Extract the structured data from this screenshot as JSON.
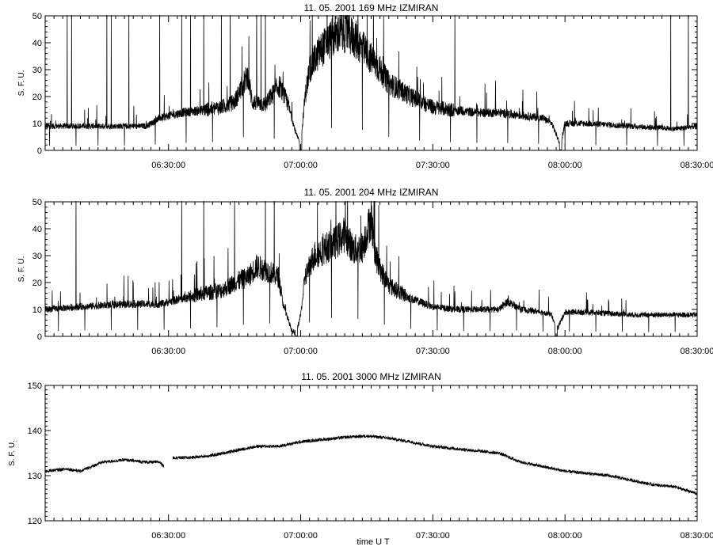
{
  "figure": {
    "xlabel": "time  U T"
  },
  "chart_data": [
    {
      "type": "line",
      "title": "11.  05.  2001    169 MHz    IZMIRAN",
      "ylabel": "S. F. U.",
      "xlim": [
        "06:02:00",
        "08:30:00"
      ],
      "ylim": [
        0,
        50
      ],
      "yticks": [
        0,
        10,
        20,
        30,
        40,
        50
      ],
      "xticks": [
        "06:30:00",
        "07:00:00",
        "07:30:00",
        "08:00:00",
        "08:30:00"
      ],
      "series": [
        {
          "baseline": [
            [
              "06:02",
              9
            ],
            [
              "06:10",
              9
            ],
            [
              "06:20",
              9
            ],
            [
              "06:25",
              9
            ],
            [
              "06:28",
              12
            ],
            [
              "06:33",
              14
            ],
            [
              "06:38",
              15
            ],
            [
              "06:42",
              16
            ],
            [
              "06:45",
              18
            ],
            [
              "06:48",
              28
            ],
            [
              "06:49",
              18
            ],
            [
              "06:52",
              17
            ],
            [
              "06:55",
              24
            ],
            [
              "06:57",
              18
            ],
            [
              "06:59",
              6
            ],
            [
              "07:00",
              2
            ],
            [
              "07:01",
              20
            ],
            [
              "07:02",
              30
            ],
            [
              "07:04",
              36
            ],
            [
              "07:06",
              40
            ],
            [
              "07:08",
              43
            ],
            [
              "07:10",
              44
            ],
            [
              "07:12",
              42
            ],
            [
              "07:14",
              38
            ],
            [
              "07:16",
              34
            ],
            [
              "07:18",
              30
            ],
            [
              "07:20",
              25
            ],
            [
              "07:25",
              20
            ],
            [
              "07:30",
              16
            ],
            [
              "07:35",
              15
            ],
            [
              "07:40",
              14
            ],
            [
              "07:45",
              14
            ],
            [
              "07:50",
              13
            ],
            [
              "07:55",
              12
            ],
            [
              "07:57",
              10
            ],
            [
              "07:59",
              2
            ],
            [
              "08:00",
              10
            ],
            [
              "08:05",
              10
            ],
            [
              "08:15",
              9
            ],
            [
              "08:25",
              8
            ],
            [
              "08:30",
              9
            ]
          ],
          "spikes_to_top": [
            "06:07",
            "06:08",
            "06:09",
            "06:14",
            "06:16",
            "06:17",
            "06:21",
            "06:28",
            "06:33",
            "06:35",
            "06:38",
            "06:42",
            "06:44",
            "06:50",
            "06:51",
            "06:52",
            "07:06",
            "07:13",
            "07:35",
            "08:24",
            "08:28"
          ],
          "dips": [
            "06:03",
            "06:09",
            "06:14",
            "06:20",
            "06:27",
            "06:34",
            "06:40",
            "06:47",
            "06:54",
            "07:00",
            "07:07",
            "07:14",
            "07:20",
            "07:27",
            "07:34",
            "07:40",
            "07:47",
            "07:54",
            "08:00",
            "08:07",
            "08:14",
            "08:21",
            "08:27"
          ],
          "min_dips": [
            "07:00",
            "07:59"
          ]
        }
      ]
    },
    {
      "type": "line",
      "title": "11.  05.  2001    204 MHz    IZMIRAN",
      "ylabel": "S. F. U.",
      "xlim": [
        "06:02:00",
        "08:30:00"
      ],
      "ylim": [
        0,
        50
      ],
      "yticks": [
        0,
        10,
        20,
        30,
        40,
        50
      ],
      "xticks": [
        "06:30:00",
        "07:00:00",
        "07:30:00",
        "08:00:00",
        "08:30:00"
      ],
      "series": [
        {
          "baseline": [
            [
              "06:02",
              10
            ],
            [
              "06:10",
              11
            ],
            [
              "06:20",
              12
            ],
            [
              "06:28",
              12
            ],
            [
              "06:33",
              14
            ],
            [
              "06:38",
              16
            ],
            [
              "06:42",
              17
            ],
            [
              "06:45",
              20
            ],
            [
              "06:48",
              22
            ],
            [
              "06:50",
              26
            ],
            [
              "06:53",
              24
            ],
            [
              "06:55",
              22
            ],
            [
              "06:56",
              12
            ],
            [
              "06:58",
              2
            ],
            [
              "06:59",
              1
            ],
            [
              "07:00",
              8
            ],
            [
              "07:01",
              22
            ],
            [
              "07:03",
              30
            ],
            [
              "07:05",
              32
            ],
            [
              "07:08",
              35
            ],
            [
              "07:10",
              38
            ],
            [
              "07:12",
              32
            ],
            [
              "07:14",
              33
            ],
            [
              "07:16",
              44
            ],
            [
              "07:17",
              30
            ],
            [
              "07:18",
              25
            ],
            [
              "07:20",
              19
            ],
            [
              "07:25",
              14
            ],
            [
              "07:30",
              11
            ],
            [
              "07:35",
              10
            ],
            [
              "07:40",
              10
            ],
            [
              "07:45",
              10
            ],
            [
              "07:47",
              13
            ],
            [
              "07:50",
              10
            ],
            [
              "07:55",
              9
            ],
            [
              "07:57",
              8
            ],
            [
              "07:58",
              2
            ],
            [
              "08:00",
              9
            ],
            [
              "08:05",
              9
            ],
            [
              "08:15",
              8
            ],
            [
              "08:25",
              8
            ],
            [
              "08:30",
              8
            ]
          ],
          "spikes_to_top": [
            "06:09",
            "06:33",
            "06:35",
            "06:38",
            "06:41",
            "06:45",
            "06:47",
            "06:52",
            "06:53",
            "06:54",
            "07:08",
            "07:16"
          ],
          "dips": [
            "06:05",
            "06:11",
            "06:17",
            "06:23",
            "06:29",
            "06:35",
            "06:41",
            "06:47",
            "06:53",
            "06:59",
            "07:02",
            "07:07",
            "07:13",
            "07:19",
            "07:25",
            "07:31",
            "07:37",
            "07:43",
            "07:49",
            "07:55",
            "08:01",
            "08:07",
            "08:13",
            "08:19",
            "08:25"
          ],
          "min_dips": [
            "06:59",
            "07:58"
          ]
        }
      ]
    },
    {
      "type": "line",
      "title": "11.  05.  2001    3000 MHz    IZMIRAN",
      "ylabel": "S. F. U.",
      "xlim": [
        "06:02:00",
        "08:30:00"
      ],
      "ylim": [
        120,
        150
      ],
      "yticks": [
        120,
        130,
        140,
        150
      ],
      "xticks": [
        "06:30:00",
        "07:00:00",
        "07:30:00",
        "08:00:00",
        "08:30:00"
      ],
      "series": [
        {
          "baseline": [
            [
              "06:02",
              131
            ],
            [
              "06:07",
              131.5
            ],
            [
              "06:10",
              131
            ],
            [
              "06:15",
              133
            ],
            [
              "06:20",
              133.5
            ],
            [
              "06:25",
              133
            ],
            [
              "06:28",
              133
            ],
            [
              "06:29",
              132
            ],
            [
              "06:30",
              null
            ],
            [
              "06:31",
              134
            ],
            [
              "06:35",
              134
            ],
            [
              "06:40",
              134.5
            ],
            [
              "06:45",
              135.5
            ],
            [
              "06:50",
              136.5
            ],
            [
              "06:55",
              136.5
            ],
            [
              "07:00",
              137.5
            ],
            [
              "07:05",
              138
            ],
            [
              "07:10",
              138.5
            ],
            [
              "07:15",
              138.8
            ],
            [
              "07:20",
              138.3
            ],
            [
              "07:25",
              137.5
            ],
            [
              "07:30",
              136.5
            ],
            [
              "07:35",
              136
            ],
            [
              "07:40",
              135.5
            ],
            [
              "07:45",
              135
            ],
            [
              "07:50",
              133
            ],
            [
              "07:55",
              132
            ],
            [
              "08:00",
              131
            ],
            [
              "08:05",
              130.5
            ],
            [
              "08:10",
              130
            ],
            [
              "08:15",
              129
            ],
            [
              "08:20",
              128
            ],
            [
              "08:25",
              127.5
            ],
            [
              "08:30",
              126
            ]
          ]
        }
      ]
    }
  ]
}
